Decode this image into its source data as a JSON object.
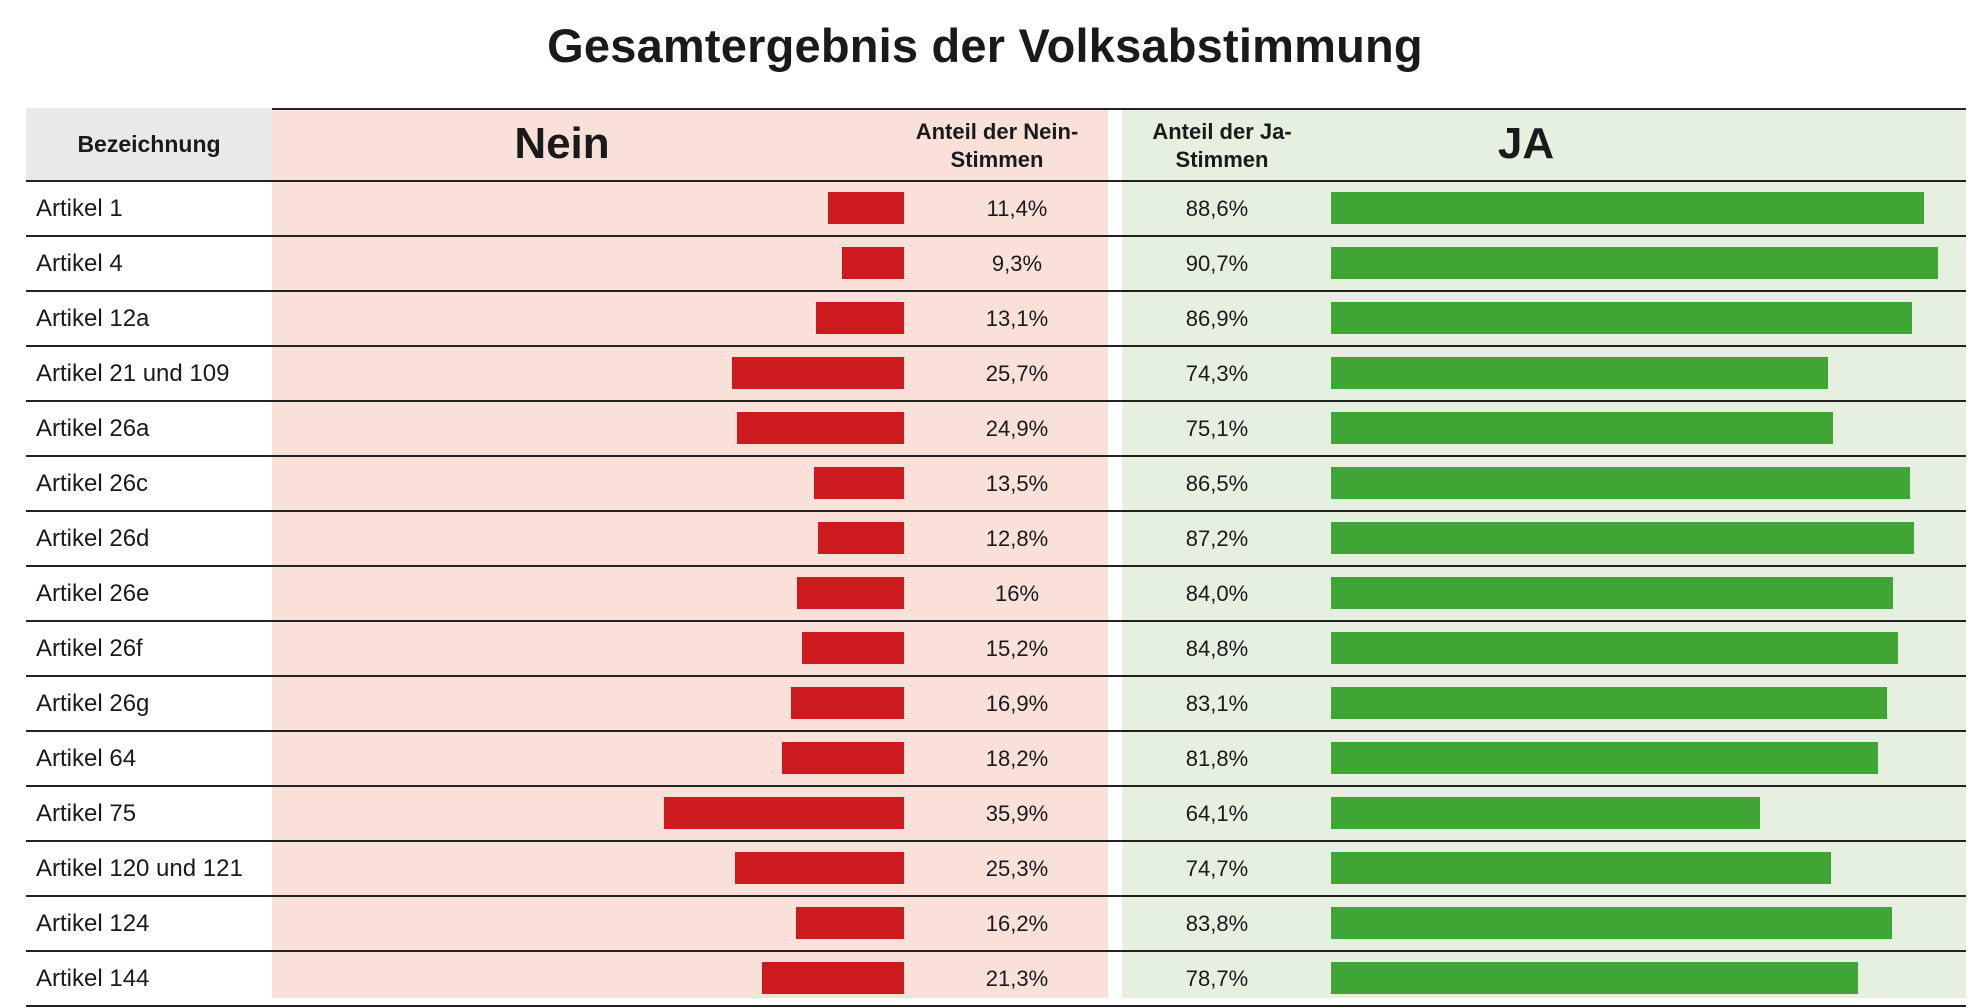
{
  "title": "Gesamtergebnis der Volksabstimmung",
  "headers": {
    "label": "Bezeichnung",
    "nein": "Nein",
    "nein_share": "Anteil der Nein-Stimmen",
    "ja_share": "Anteil der Ja-Stimmen",
    "ja": "JA"
  },
  "colors": {
    "nein_bar": "#cc1a1f",
    "ja_bar": "#3fa535",
    "nein_bg": "#f9e0d9",
    "ja_bg": "#e5f0e1",
    "header_bg": "#e9e9e9"
  },
  "chart_data": {
    "type": "bar",
    "title": "Gesamtergebnis der Volksabstimmung",
    "categories": [
      "Artikel 1",
      "Artikel 4",
      "Artikel 12a",
      "Artikel 21 und 109",
      "Artikel 26a",
      "Artikel 26c",
      "Artikel 26d",
      "Artikel 26e",
      "Artikel 26f",
      "Artikel 26g",
      "Artikel 64",
      "Artikel 75",
      "Artikel 120 und 121",
      "Artikel 124",
      "Artikel 144"
    ],
    "series": [
      {
        "name": "Nein",
        "values": [
          11.4,
          9.3,
          13.1,
          25.7,
          24.9,
          13.5,
          12.8,
          16,
          15.2,
          16.9,
          18.2,
          35.9,
          25.3,
          16.2,
          21.3
        ],
        "labels": [
          "11,4%",
          "9,3%",
          "13,1%",
          "25,7%",
          "24,9%",
          "13,5%",
          "12,8%",
          "16%",
          "15,2%",
          "16,9%",
          "18,2%",
          "35,9%",
          "25,3%",
          "16,2%",
          "21,3%"
        ]
      },
      {
        "name": "JA",
        "values": [
          88.6,
          90.7,
          86.9,
          74.3,
          75.1,
          86.5,
          87.2,
          84.0,
          84.8,
          83.1,
          81.8,
          64.1,
          74.7,
          83.8,
          78.7
        ],
        "labels": [
          "88,6%",
          "90,7%",
          "86,9%",
          "74,3%",
          "75,1%",
          "86,5%",
          "87,2%",
          "84,0%",
          "84,8%",
          "83,1%",
          "81,8%",
          "64,1%",
          "74,7%",
          "83,8%",
          "78,7%"
        ]
      }
    ],
    "unit": "%",
    "xlim": [
      0,
      100
    ],
    "grid": false
  }
}
